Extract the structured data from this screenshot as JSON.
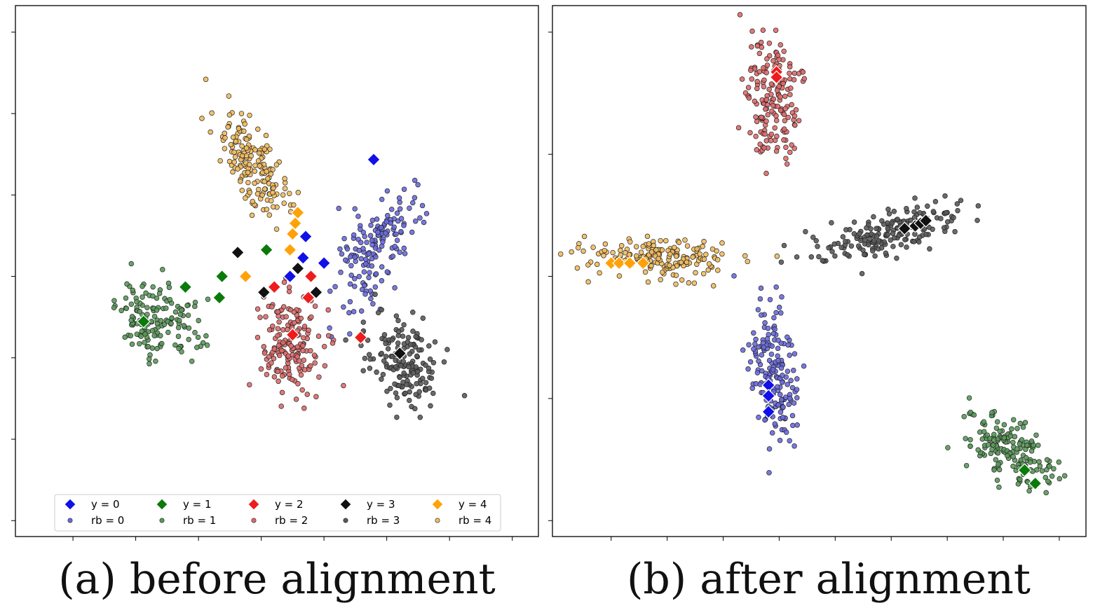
{
  "figure": {
    "captions": [
      {
        "label": "(a)",
        "text": "before alignment"
      },
      {
        "label": "(b)",
        "text": "after alignment"
      }
    ]
  },
  "colors": {
    "class_0": "#1010e8",
    "class_1": "#0a7a0a",
    "class_2": "#ee1c1c",
    "class_3": "#111111",
    "class_4": "#ffa20a",
    "cluster_0": "#6a6ae0",
    "cluster_1": "#5a9a5a",
    "cluster_2": "#e06a6a",
    "cluster_3": "#5a5a5a",
    "cluster_4": "#f2bb5e"
  },
  "chart_data": [
    {
      "type": "scatter",
      "panel": "a",
      "title": "",
      "xlabel": "",
      "ylabel": "",
      "tick_labels": "hidden",
      "xlim": [
        0,
        100
      ],
      "ylim": [
        0,
        100
      ],
      "legend": {
        "placement": "bottom-center",
        "entries": [
          {
            "marker": "diamond",
            "label": "y = 0",
            "class": 0
          },
          {
            "marker": "diamond",
            "label": "y = 1",
            "class": 1
          },
          {
            "marker": "diamond",
            "label": "y = 2",
            "class": 2
          },
          {
            "marker": "diamond",
            "label": "y = 3",
            "class": 3
          },
          {
            "marker": "diamond",
            "label": "y = 4",
            "class": 4
          },
          {
            "marker": "dot",
            "label": "rb = 0",
            "class": 0
          },
          {
            "marker": "dot",
            "label": "rb = 1",
            "class": 1
          },
          {
            "marker": "dot",
            "label": "rb = 2",
            "class": 2
          },
          {
            "marker": "dot",
            "label": "rb = 3",
            "class": 3
          },
          {
            "marker": "dot",
            "label": "rb = 4",
            "class": 4
          }
        ]
      },
      "clusters": [
        {
          "class": 0,
          "center": [
            69.0,
            55.0
          ],
          "spread": [
            5.0,
            11.5
          ],
          "angle": -30,
          "count": 160
        },
        {
          "class": 1,
          "center": [
            27.5,
            40.5
          ],
          "spread": [
            8.0,
            5.8
          ],
          "angle": -18,
          "count": 150
        },
        {
          "class": 2,
          "center": [
            52.5,
            36.0
          ],
          "spread": [
            5.5,
            9.0
          ],
          "angle": 8,
          "count": 170
        },
        {
          "class": 3,
          "center": [
            74.0,
            33.5
          ],
          "spread": [
            6.0,
            8.5
          ],
          "angle": 15,
          "count": 160
        },
        {
          "class": 4,
          "center": [
            46.0,
            69.5
          ],
          "spread": [
            4.5,
            11.0
          ],
          "angle": 30,
          "count": 170
        }
      ],
      "labeled_points": [
        {
          "class": 0,
          "x": 68.5,
          "y": 71.0
        },
        {
          "class": 0,
          "x": 55.5,
          "y": 56.5
        },
        {
          "class": 0,
          "x": 55.0,
          "y": 52.5
        },
        {
          "class": 0,
          "x": 59.0,
          "y": 51.5
        },
        {
          "class": 0,
          "x": 52.5,
          "y": 49.0
        },
        {
          "class": 1,
          "x": 48.0,
          "y": 54.0
        },
        {
          "class": 1,
          "x": 39.5,
          "y": 49.0
        },
        {
          "class": 1,
          "x": 32.5,
          "y": 47.0
        },
        {
          "class": 1,
          "x": 39.0,
          "y": 45.0
        },
        {
          "class": 1,
          "x": 24.5,
          "y": 40.5
        },
        {
          "class": 2,
          "x": 49.5,
          "y": 47.0
        },
        {
          "class": 2,
          "x": 56.5,
          "y": 49.0
        },
        {
          "class": 2,
          "x": 56.0,
          "y": 45.0
        },
        {
          "class": 2,
          "x": 53.0,
          "y": 38.0
        },
        {
          "class": 2,
          "x": 66.0,
          "y": 37.5
        },
        {
          "class": 3,
          "x": 42.5,
          "y": 53.5
        },
        {
          "class": 3,
          "x": 54.0,
          "y": 50.5
        },
        {
          "class": 3,
          "x": 57.5,
          "y": 46.0
        },
        {
          "class": 3,
          "x": 47.5,
          "y": 46.0
        },
        {
          "class": 3,
          "x": 73.5,
          "y": 34.5
        },
        {
          "class": 4,
          "x": 54.0,
          "y": 61.0
        },
        {
          "class": 4,
          "x": 53.5,
          "y": 59.0
        },
        {
          "class": 4,
          "x": 53.0,
          "y": 57.0
        },
        {
          "class": 4,
          "x": 52.5,
          "y": 54.0
        },
        {
          "class": 4,
          "x": 44.0,
          "y": 49.0
        }
      ]
    },
    {
      "type": "scatter",
      "panel": "b",
      "title": "",
      "xlabel": "",
      "ylabel": "",
      "tick_labels": "hidden",
      "xlim": [
        0,
        100
      ],
      "ylim": [
        0,
        100
      ],
      "legend": null,
      "clusters": [
        {
          "class": 2,
          "center": [
            41.5,
            82.0
          ],
          "spread": [
            4.5,
            10.5
          ],
          "angle": 3,
          "count": 170
        },
        {
          "class": 4,
          "center": [
            19.5,
            52.5
          ],
          "spread": [
            12.5,
            3.3
          ],
          "angle": -3,
          "count": 180
        },
        {
          "class": 3,
          "center": [
            63.0,
            57.0
          ],
          "spread": [
            13.0,
            4.0
          ],
          "angle": 15,
          "count": 190
        },
        {
          "class": 0,
          "center": [
            41.5,
            30.0
          ],
          "spread": [
            4.0,
            12.5
          ],
          "angle": 5,
          "count": 180
        },
        {
          "class": 1,
          "center": [
            85.5,
            16.5
          ],
          "spread": [
            10.0,
            4.5
          ],
          "angle": -35,
          "count": 170
        }
      ],
      "labeled_points": [
        {
          "class": 2,
          "x": 42.0,
          "y": 87.5
        },
        {
          "class": 2,
          "x": 42.0,
          "y": 86.5
        },
        {
          "class": 4,
          "x": 11.0,
          "y": 51.5
        },
        {
          "class": 4,
          "x": 12.5,
          "y": 51.5
        },
        {
          "class": 4,
          "x": 14.5,
          "y": 51.5
        },
        {
          "class": 4,
          "x": 17.0,
          "y": 51.5
        },
        {
          "class": 3,
          "x": 66.0,
          "y": 58.0
        },
        {
          "class": 3,
          "x": 68.0,
          "y": 58.5
        },
        {
          "class": 3,
          "x": 69.0,
          "y": 59.0
        },
        {
          "class": 3,
          "x": 70.0,
          "y": 59.5
        },
        {
          "class": 0,
          "x": 40.5,
          "y": 28.5
        },
        {
          "class": 0,
          "x": 40.5,
          "y": 26.5
        },
        {
          "class": 0,
          "x": 40.5,
          "y": 23.5
        },
        {
          "class": 1,
          "x": 88.5,
          "y": 12.5
        },
        {
          "class": 1,
          "x": 90.5,
          "y": 10.0
        }
      ]
    }
  ]
}
